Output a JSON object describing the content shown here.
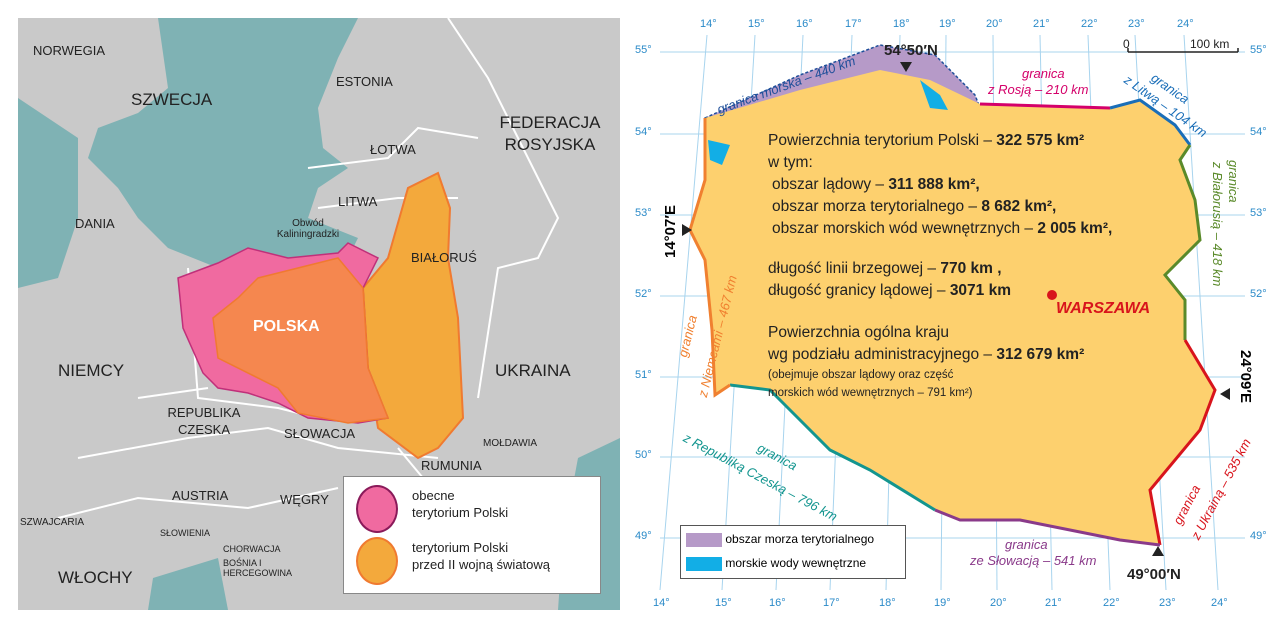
{
  "left_map": {
    "countries": [
      "NORWEGIA",
      "SZWECJA",
      "ESTONIA",
      "FEDERACJA ROSYJSKA",
      "ŁOTWA",
      "LITWA",
      "DANIA",
      "Obwód Kaliningradzki",
      "BIAŁORUŚ",
      "POLSKA",
      "NIEMCY",
      "UKRAINA",
      "REPUBLIKA CZESKA",
      "SŁOWACJA",
      "MOŁDAWIA",
      "RUMUNIA",
      "AUSTRIA",
      "WĘGRY",
      "SZWAJCARIA",
      "SŁOWIENIA",
      "CHORWACJA",
      "BOŚNIA I HERCEGOWINA",
      "WŁOCHY"
    ],
    "legend": [
      {
        "label_1": "obecne",
        "label_2": "terytorium Polski",
        "color": "#f06aa0"
      },
      {
        "label_1": "terytorium Polski",
        "label_2": "przed II wojną światową",
        "color": "#f3a93c"
      }
    ],
    "colors": {
      "land": "#c9c9c9",
      "sea": "#7fb2b4",
      "overlap": "#f5874f"
    }
  },
  "right_map": {
    "lat_labels": [
      "55°",
      "54°",
      "53°",
      "52°",
      "51°",
      "50°",
      "49°"
    ],
    "lon_labels": [
      "14°",
      "15°",
      "16°",
      "17°",
      "18°",
      "19°",
      "20°",
      "21°",
      "22°",
      "23°",
      "24°"
    ],
    "scale": {
      "start": "0",
      "end": "100 km"
    },
    "extremes": {
      "north": "54°50′N",
      "west": "14°07′E",
      "east": "24°09′E",
      "south": "49°00′N"
    },
    "borders": [
      {
        "line1": "granica morska – 440 km",
        "color": "#1f4f9a"
      },
      {
        "line1": "granica",
        "line2": "z Rosją – 210 km",
        "color": "#d4006a"
      },
      {
        "line1": "granica",
        "line2": "z Litwą – 104 km",
        "color": "#1a6eb8"
      },
      {
        "line1": "granica",
        "line2": "z Białorusią – 418 km",
        "color": "#5a8a2a"
      },
      {
        "line1": "granica",
        "line2": "z Ukrainą – 535 km",
        "color": "#d8141c"
      },
      {
        "line1": "granica",
        "line2": "ze Słowacją – 541 km",
        "color": "#8a3a8a"
      },
      {
        "line1": "granica",
        "line2": "z Republiką Czeską – 796 km",
        "color": "#13958f"
      },
      {
        "line1": "granica",
        "line2": "z Niemcami – 467 km",
        "color": "#f08030"
      }
    ],
    "capital": "WARSZAWA",
    "info": {
      "l1": "Powierzchnia terytorium Polski – ",
      "v1": "322 575 km²",
      "l2": "w tym:",
      "l3": "obszar lądowy – ",
      "v3": "311 888 km²,",
      "l4": "obszar morza terytorialnego – ",
      "v4": "8 682 km²,",
      "l5": "obszar morskich wód wewnętrznych – ",
      "v5": "2 005 km²,",
      "l6": "długość linii brzegowej – ",
      "v6": "770 km ,",
      "l7": "długość granicy lądowej – ",
      "v7": "3071 km",
      "l8": "Powierzchnia ogólna kraju",
      "l9": "wg podziału administracyjnego – ",
      "v9": "312 679 km²",
      "l10": "(obejmuje obszar lądowy oraz część",
      "l11": "morskich wód wewnętrznych – 791 km²)"
    },
    "legend": [
      {
        "label": "obszar morza terytorialnego",
        "color": "#b69ac8"
      },
      {
        "label": "morskie wody wewnętrzne",
        "color": "#12aee6"
      }
    ],
    "colors": {
      "land": "#fdd06e",
      "grid": "#a8d4ee"
    }
  }
}
